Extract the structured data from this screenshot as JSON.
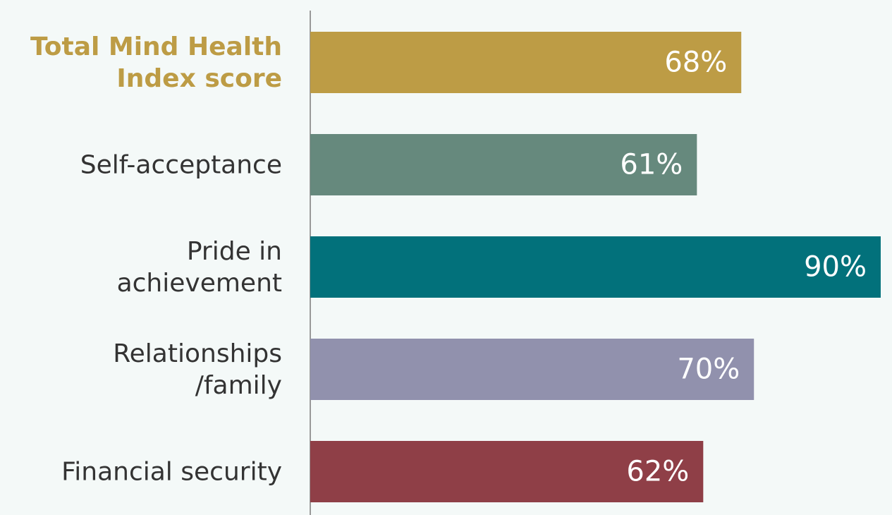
{
  "chart_data": {
    "type": "bar",
    "orientation": "horizontal",
    "categories": [
      "Total Mind Health\nIndex score",
      "Self-acceptance",
      "Pride in\nachievement",
      "Relationships\n/family",
      "Financial security"
    ],
    "values": [
      68,
      61,
      90,
      70,
      62
    ],
    "value_labels": [
      "68%",
      "61%",
      "90%",
      "70%",
      "62%"
    ],
    "colors": [
      "#bd9c45",
      "#66897d",
      "#02717b",
      "#9191ad",
      "#8f3f47"
    ],
    "xlim": [
      0,
      90
    ]
  }
}
